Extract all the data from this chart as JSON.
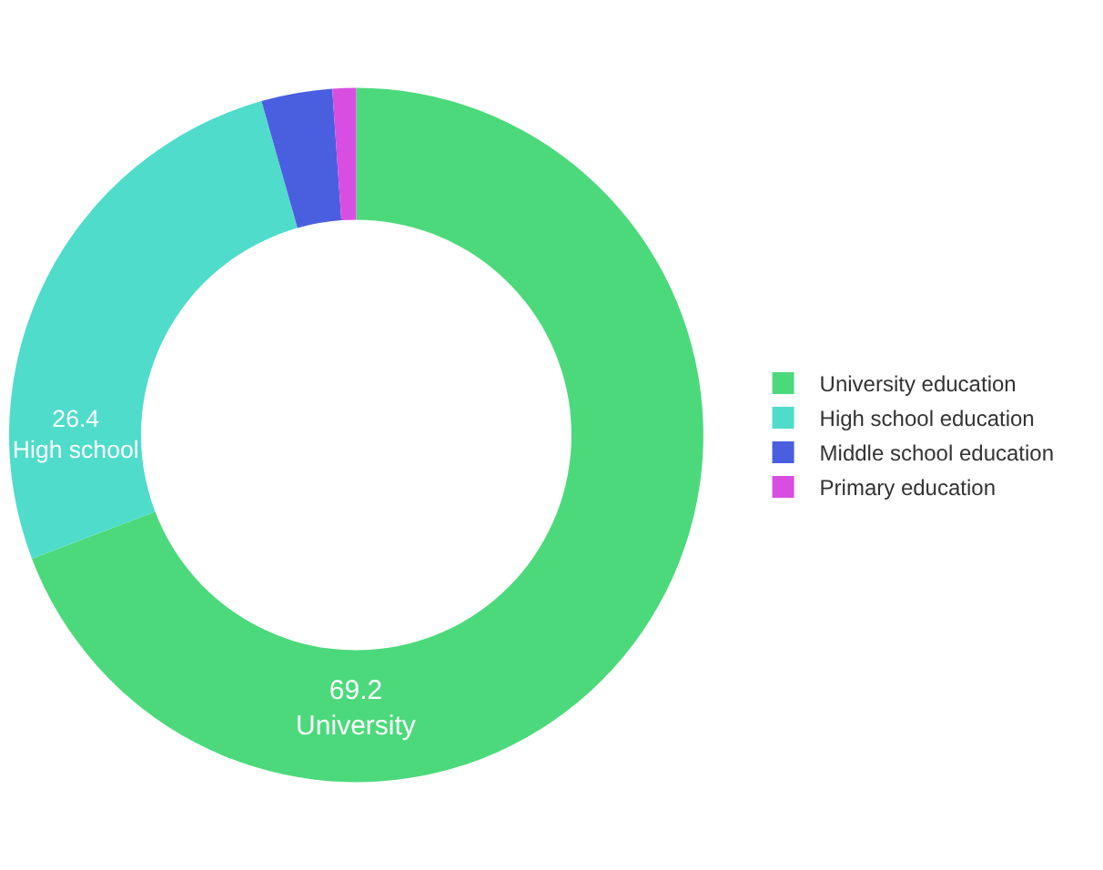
{
  "chart_data": {
    "type": "donut",
    "categories": [
      "University education",
      "High school education",
      "Middle school education",
      "Primary education"
    ],
    "values": [
      69.2,
      26.4,
      3.3,
      1.1
    ],
    "colors": [
      "#4cd97b",
      "#4fdccb",
      "#4a5ee0",
      "#d84ee0"
    ],
    "value_labels": [
      "69.2\nUniversity",
      "26.4\nHigh school",
      null,
      null
    ],
    "legend": "right"
  }
}
